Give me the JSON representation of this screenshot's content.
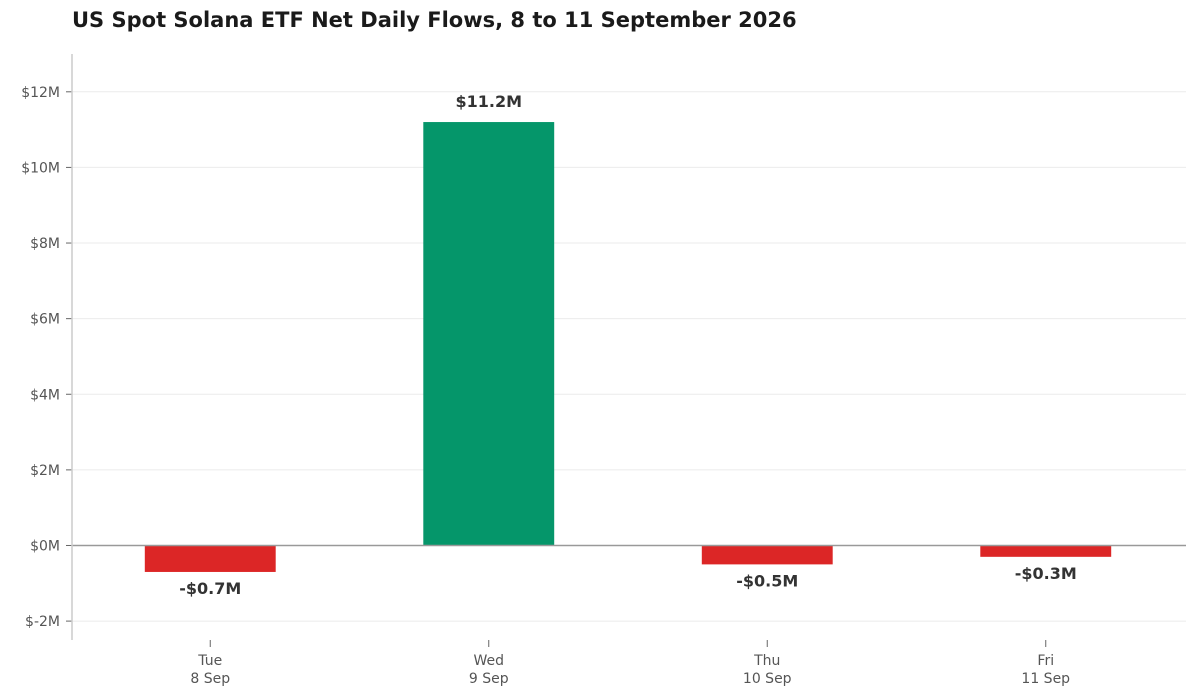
{
  "chart_data": {
    "type": "bar",
    "title": "US Spot Solana ETF Net Daily Flows, 8 to 11 September 2026",
    "xlabel": "",
    "ylabel": "",
    "categories": [
      {
        "day": "Tue",
        "date": "8 Sep"
      },
      {
        "day": "Wed",
        "date": "9 Sep"
      },
      {
        "day": "Thu",
        "date": "10 Sep"
      },
      {
        "day": "Fri",
        "date": "11 Sep"
      }
    ],
    "values": [
      -0.7,
      11.2,
      -0.5,
      -0.3
    ],
    "value_unit": "$M",
    "data_labels": [
      "-$0.7M",
      "$11.2M",
      "-$0.5M",
      "-$0.3M"
    ],
    "ylim": [
      -2.5,
      13
    ],
    "yticks": [
      -2,
      0,
      2,
      4,
      6,
      8,
      10,
      12
    ],
    "ytick_labels": [
      "$-2M",
      "$0M",
      "$2M",
      "$4M",
      "$6M",
      "$8M",
      "$10M",
      "$12M"
    ],
    "grid": true,
    "colors": {
      "positive": "#05966a",
      "negative": "#dc2626",
      "zero_line": "#999999",
      "grid": "#ebebeb"
    }
  }
}
